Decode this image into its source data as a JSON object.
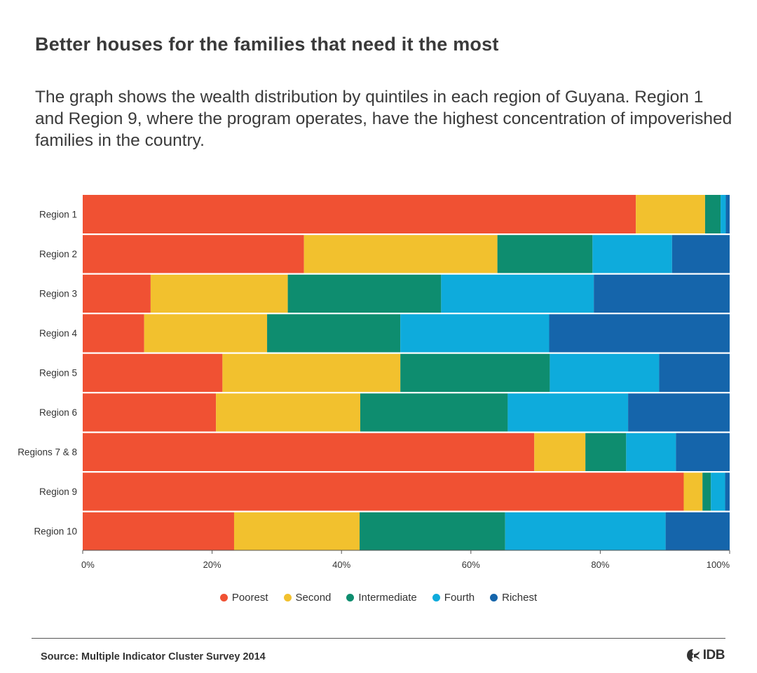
{
  "header": {
    "title": "Better houses for the families that need it the most",
    "subtitle": "The graph shows the wealth distribution by quintiles in each region of Guyana. Region 1 and Region 9, where the program operates, have the highest concentration of impoverished families in the country."
  },
  "chart_data": {
    "type": "bar",
    "orientation": "horizontal",
    "stacked": true,
    "categories": [
      "Region 1",
      "Region 2",
      "Region 3",
      "Region 4",
      "Region 5",
      "Region 6",
      "Regions 7 & 8",
      "Region 9",
      "Region 10"
    ],
    "series": [
      {
        "name": "Poorest",
        "color": "#f05133",
        "values": [
          85.5,
          34.2,
          10.5,
          9.5,
          21.6,
          20.6,
          69.8,
          92.9,
          23.4
        ]
      },
      {
        "name": "Second",
        "color": "#f2c12e",
        "values": [
          10.7,
          29.9,
          21.2,
          19.0,
          27.5,
          22.3,
          7.9,
          2.9,
          19.4
        ]
      },
      {
        "name": "Intermediate",
        "color": "#0e8d6f",
        "values": [
          2.4,
          14.7,
          23.7,
          20.6,
          23.1,
          22.8,
          6.3,
          1.3,
          22.5
        ]
      },
      {
        "name": "Fourth",
        "color": "#0eabdc",
        "values": [
          0.8,
          12.3,
          23.6,
          23.0,
          16.9,
          18.6,
          7.7,
          2.2,
          24.8
        ]
      },
      {
        "name": "Richest",
        "color": "#1565ab",
        "values": [
          0.6,
          8.9,
          21.0,
          27.9,
          10.9,
          15.7,
          8.3,
          0.7,
          9.9
        ]
      }
    ],
    "x_ticks": [
      "0%",
      "20%",
      "40%",
      "60%",
      "80%",
      "100%"
    ],
    "xlim": [
      0,
      100
    ],
    "legend_position": "bottom-center",
    "grid": false
  },
  "footer": {
    "source": "Source:  Multiple Indicator Cluster Survey 2014",
    "logo_text": "IDB"
  }
}
